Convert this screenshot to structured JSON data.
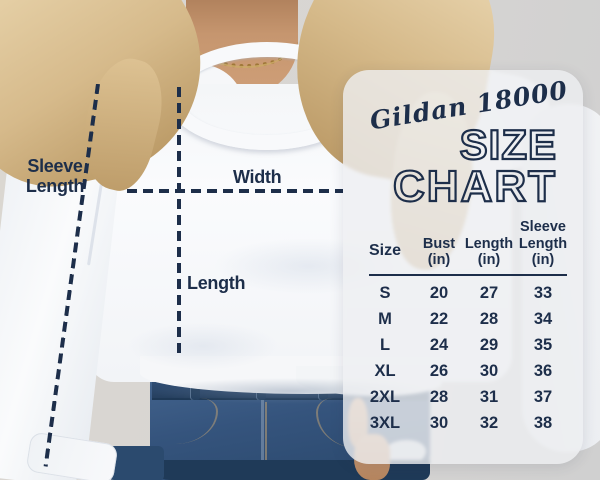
{
  "colors": {
    "accent_navy": "#1d2e4a",
    "panel_background": "#eeeff1",
    "jeans_blue": "#35547d",
    "hair_blonde": "#d6ba8b",
    "backdrop_gray": "#d7d5d3",
    "sweatshirt_white": "#fafbfd"
  },
  "overlay": {
    "sleeve_label_line1": "Sleeve",
    "sleeve_label_line2": "Length",
    "width_label": "Width",
    "length_label": "Length"
  },
  "panel": {
    "brand": "Gildan 18000",
    "title_line1": "SIZE",
    "title_line2": "CHART",
    "table": {
      "header_lines": {
        "size": "Size",
        "bust_1": "Bust",
        "bust_2": "(in)",
        "length_1": "Length",
        "length_2": "(in)",
        "sleeve_1": "Sleeve",
        "sleeve_2": "Length",
        "sleeve_3": "(in)"
      }
    }
  },
  "chart_data": {
    "type": "table",
    "title": "Gildan 18000 Size Chart",
    "columns": [
      "Size",
      "Bust (in)",
      "Length (in)",
      "Sleeve Length (in)"
    ],
    "rows": [
      [
        "S",
        "20",
        "27",
        "33"
      ],
      [
        "M",
        "22",
        "28",
        "34"
      ],
      [
        "L",
        "24",
        "29",
        "35"
      ],
      [
        "XL",
        "26",
        "30",
        "36"
      ],
      [
        "2XL",
        "28",
        "31",
        "37"
      ],
      [
        "3XL",
        "30",
        "32",
        "38"
      ]
    ]
  }
}
